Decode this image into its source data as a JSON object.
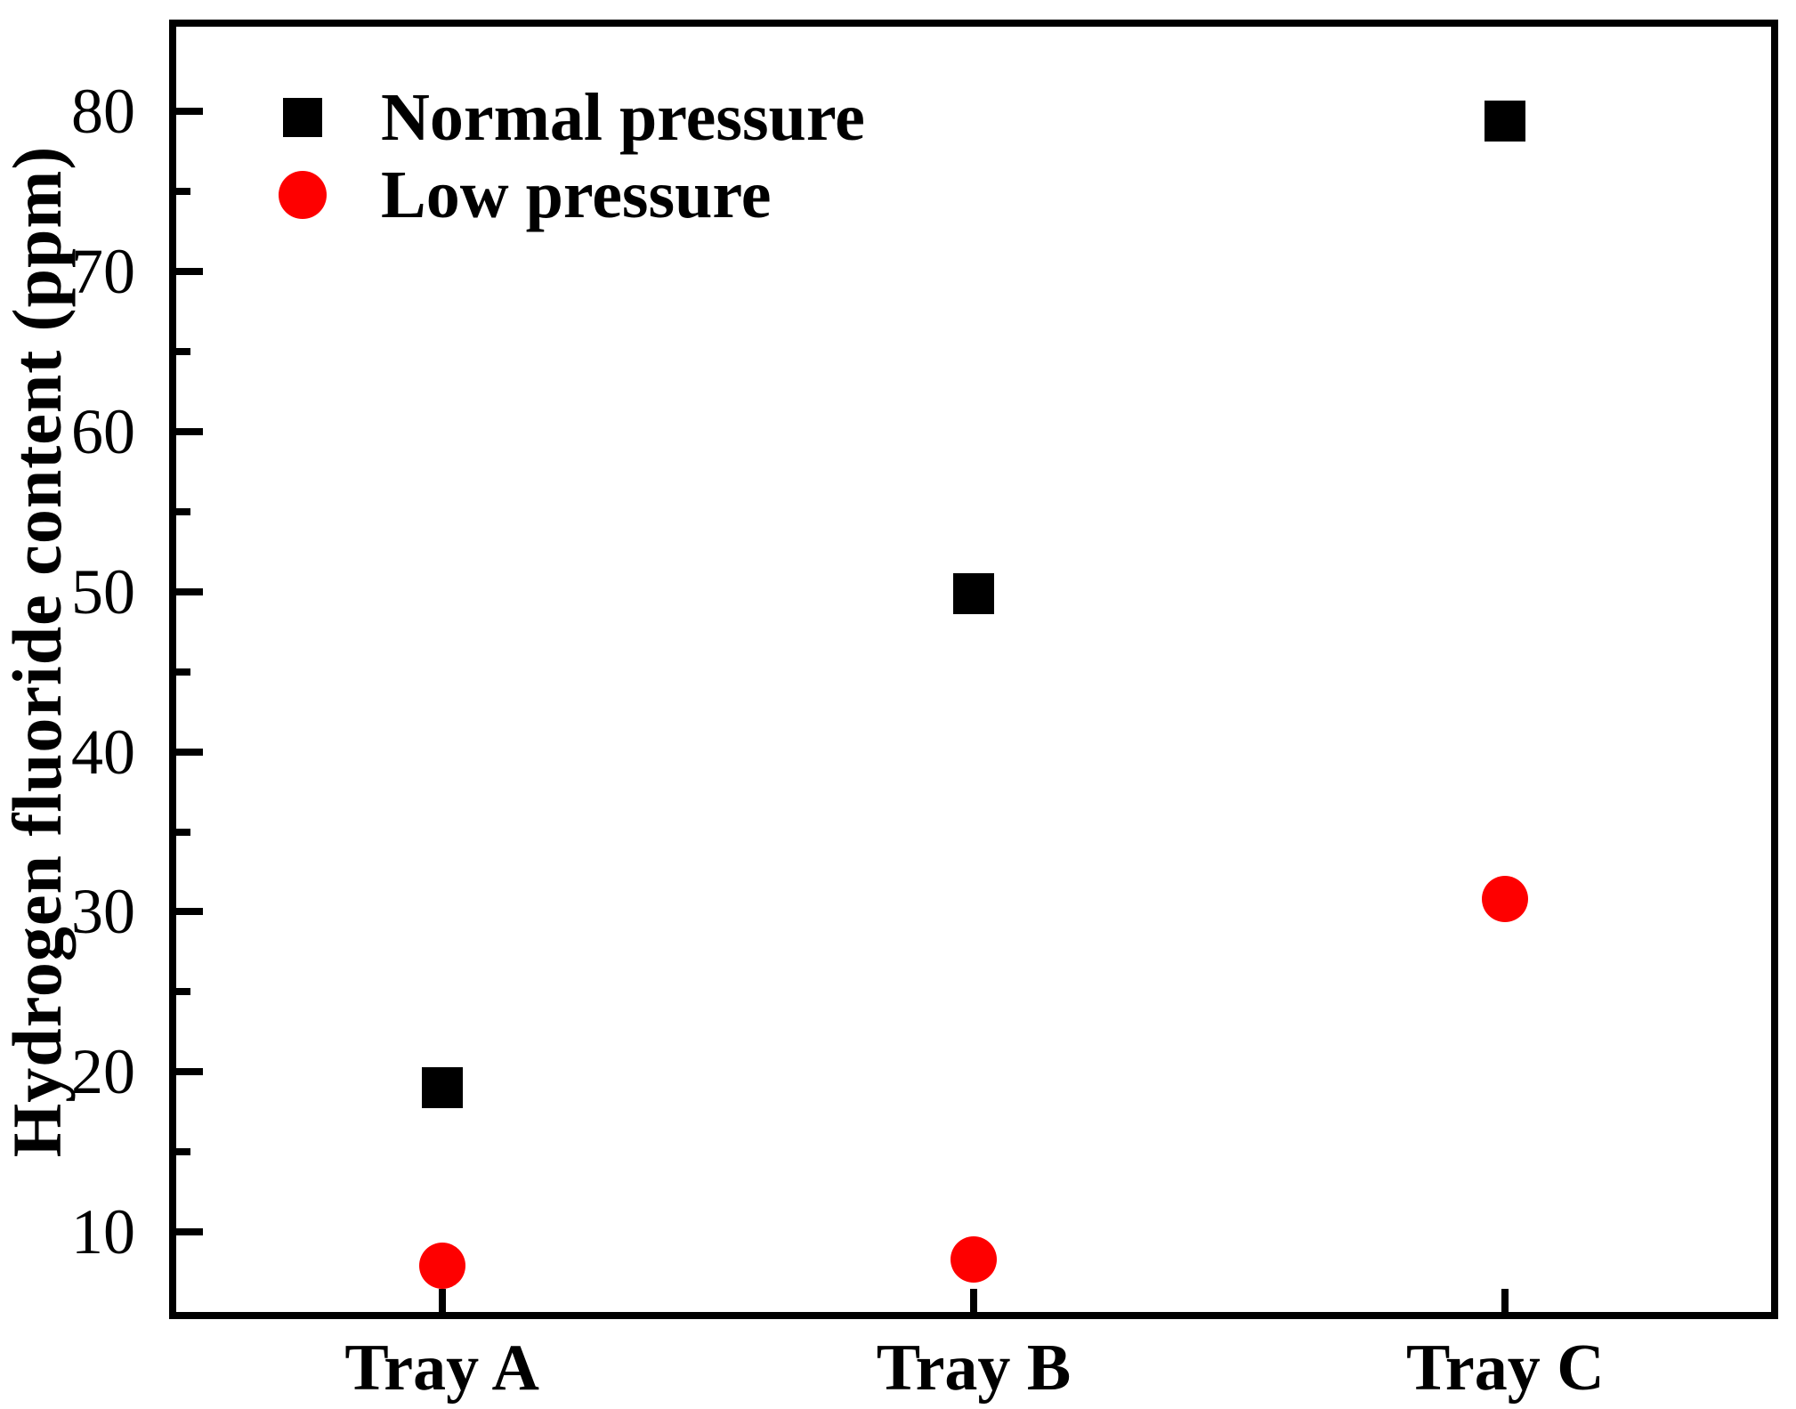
{
  "chart_data": {
    "type": "scatter",
    "title": "",
    "xlabel": "",
    "ylabel": "Hydrogen fluoride content (ppm)",
    "categories": [
      "Tray A",
      "Tray B",
      "Tray C"
    ],
    "series": [
      {
        "name": "Normal pressure",
        "marker": "square",
        "color": "#000000",
        "values": [
          19.0,
          49.9,
          79.4
        ]
      },
      {
        "name": "Low pressure",
        "marker": "circle",
        "color": "#fe0000",
        "values": [
          7.9,
          8.3,
          30.8
        ]
      }
    ],
    "ylim": [
      5,
      85.3
    ],
    "yticks_major": [
      10,
      20,
      30,
      40,
      50,
      60,
      70,
      80
    ],
    "yticks_minor": [
      15,
      25,
      35,
      45,
      55,
      65,
      75
    ],
    "grid": false,
    "legend_position": "top-left",
    "axis_color": "#000000",
    "background": "#ffffff"
  }
}
